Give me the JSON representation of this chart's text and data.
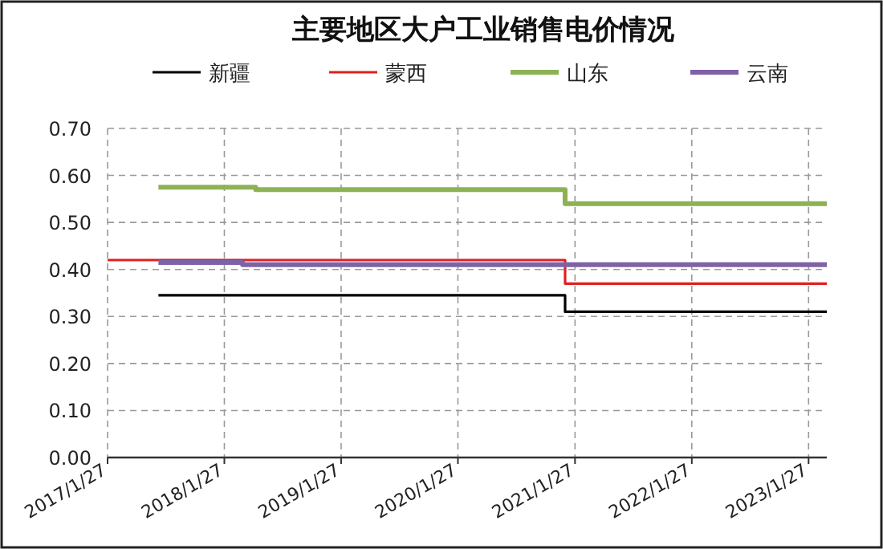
{
  "chart_data": {
    "type": "step",
    "title": "主要地区大户工业销售电价情况",
    "legend": "top",
    "grid": true,
    "xlim": [
      "2017-01-27",
      "2023-03-25"
    ],
    "xticks": [
      {
        "value": "2017-01-27",
        "label": "2017/1/27"
      },
      {
        "value": "2018-01-27",
        "label": "2018/1/27"
      },
      {
        "value": "2019-01-27",
        "label": "2019/1/27"
      },
      {
        "value": "2020-01-27",
        "label": "2020/1/27"
      },
      {
        "value": "2021-01-27",
        "label": "2021/1/27"
      },
      {
        "value": "2022-01-27",
        "label": "2022/1/27"
      },
      {
        "value": "2023-01-27",
        "label": "2023/1/27"
      }
    ],
    "ylim": [
      0,
      0.7
    ],
    "yticks": [
      {
        "value": 0,
        "label": "0.00"
      },
      {
        "value": 0.1,
        "label": "0.10"
      },
      {
        "value": 0.2,
        "label": "0.20"
      },
      {
        "value": 0.3,
        "label": "0.30"
      },
      {
        "value": 0.4,
        "label": "0.40"
      },
      {
        "value": 0.5,
        "label": "0.50"
      },
      {
        "value": 0.6,
        "label": "0.60"
      },
      {
        "value": 0.7,
        "label": "0.70"
      }
    ],
    "series": [
      {
        "name": "新疆",
        "color": "#000000",
        "x": [
          "2017-07-05",
          "2020-12-27",
          "2023-03-25"
        ],
        "values": [
          0.345,
          0.31,
          0.31
        ]
      },
      {
        "name": "蒙西",
        "color": "#e02020",
        "x": [
          "2017-01-27",
          "2020-12-27",
          "2023-03-25"
        ],
        "values": [
          0.42,
          0.37,
          0.37
        ]
      },
      {
        "name": "山东",
        "color": "#8db255",
        "x": [
          "2017-07-05",
          "2018-05-05",
          "2020-12-27",
          "2023-03-25"
        ],
        "values": [
          0.575,
          0.57,
          0.54,
          0.54
        ]
      },
      {
        "name": "云南",
        "color": "#7f62a6",
        "x": [
          "2017-07-05",
          "2018-03-25",
          "2023-03-25"
        ],
        "values": [
          0.415,
          0.41,
          0.41
        ]
      }
    ]
  }
}
